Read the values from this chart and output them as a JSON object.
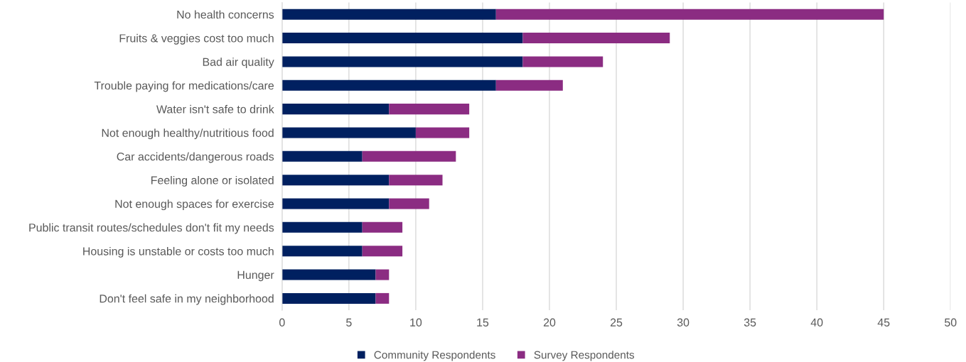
{
  "chart_data": {
    "type": "bar",
    "orientation": "horizontal",
    "stacked": true,
    "categories": [
      "No health concerns",
      "Fruits & veggies cost too much",
      "Bad air quality",
      "Trouble paying for medications/care",
      "Water isn't safe to drink",
      "Not enough healthy/nutritious food",
      "Car accidents/dangerous roads",
      "Feeling alone or isolated",
      "Not enough spaces for exercise",
      "Public transit routes/schedules don't fit my needs",
      "Housing is unstable or costs too much",
      "Hunger",
      "Don't feel safe in my neighborhood"
    ],
    "series": [
      {
        "name": "Community Respondents",
        "color": "#002060",
        "values": [
          16,
          18,
          18,
          16,
          8,
          10,
          6,
          8,
          8,
          6,
          6,
          7,
          7
        ]
      },
      {
        "name": "Survey Respondents",
        "color": "#8b2c82",
        "values": [
          29,
          11,
          6,
          5,
          6,
          4,
          7,
          4,
          3,
          3,
          3,
          1,
          1
        ]
      }
    ],
    "xlim": [
      0,
      50
    ],
    "xticks": [
      0,
      5,
      10,
      15,
      20,
      25,
      30,
      35,
      40,
      45,
      50
    ],
    "grid": "x",
    "legend": "bottom"
  }
}
